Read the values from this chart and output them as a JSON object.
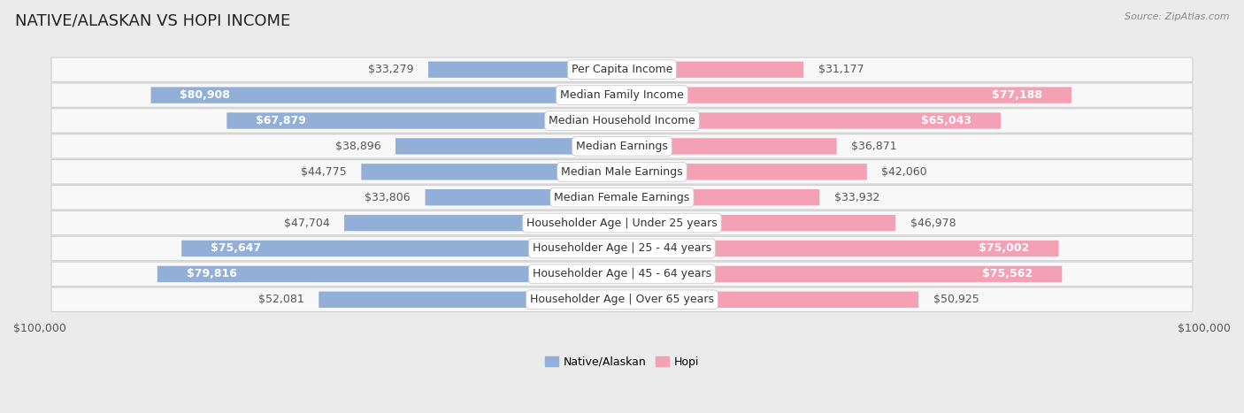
{
  "title": "NATIVE/ALASKAN VS HOPI INCOME",
  "source": "Source: ZipAtlas.com",
  "max_value": 100000,
  "categories": [
    "Per Capita Income",
    "Median Family Income",
    "Median Household Income",
    "Median Earnings",
    "Median Male Earnings",
    "Median Female Earnings",
    "Householder Age | Under 25 years",
    "Householder Age | 25 - 44 years",
    "Householder Age | 45 - 64 years",
    "Householder Age | Over 65 years"
  ],
  "native_values": [
    33279,
    80908,
    67879,
    38896,
    44775,
    33806,
    47704,
    75647,
    79816,
    52081
  ],
  "hopi_values": [
    31177,
    77188,
    65043,
    36871,
    42060,
    33932,
    46978,
    75002,
    75562,
    50925
  ],
  "native_labels": [
    "$33,279",
    "$80,908",
    "$67,879",
    "$38,896",
    "$44,775",
    "$33,806",
    "$47,704",
    "$75,647",
    "$79,816",
    "$52,081"
  ],
  "hopi_labels": [
    "$31,177",
    "$77,188",
    "$65,043",
    "$36,871",
    "$42,060",
    "$33,932",
    "$46,978",
    "$75,002",
    "$75,562",
    "$50,925"
  ],
  "native_color": "#92afd7",
  "hopi_color": "#f4a0b5",
  "native_color_strong": "#5b8ec4",
  "hopi_color_strong": "#e8688a",
  "native_label_threshold": 60000,
  "hopi_label_threshold": 60000,
  "background_color": "#ebebeb",
  "row_bg_color": "#f8f8f8",
  "row_edge_color": "#d0d0d0",
  "title_fontsize": 13,
  "label_fontsize": 9,
  "category_fontsize": 9,
  "legend_fontsize": 9,
  "axis_label_fontsize": 9
}
